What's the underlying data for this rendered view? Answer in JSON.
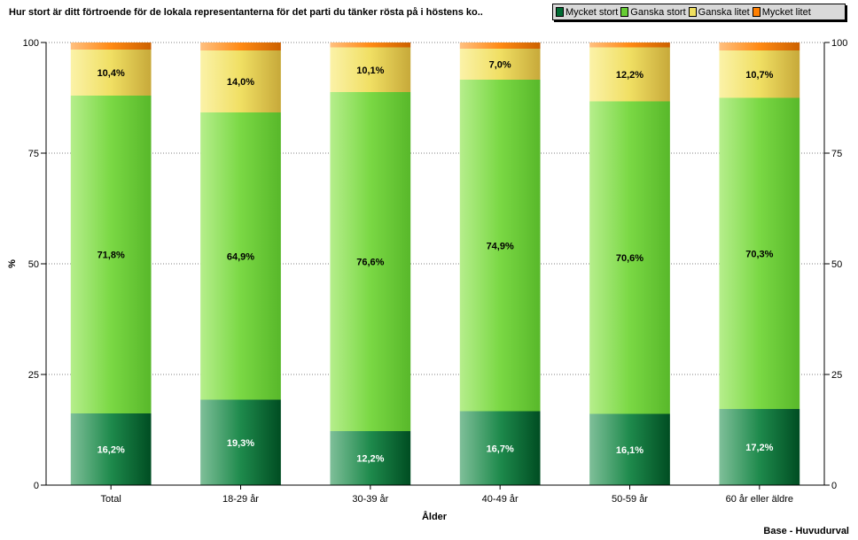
{
  "chart_data": {
    "type": "bar",
    "stacked": true,
    "title": "Hur stort är ditt förtroende för de lokala representanterna för det parti du tänker rösta på i höstens ko..",
    "xlabel": "Ålder",
    "ylabel": "%",
    "ylim": [
      0,
      100
    ],
    "yticks": [
      0,
      25,
      50,
      75,
      100
    ],
    "grid": true,
    "legend_position": "top-right",
    "categories": [
      "Total",
      "18-29 år",
      "30-39 år",
      "40-49 år",
      "50-59 år",
      "60 år eller äldre"
    ],
    "series": [
      {
        "name": "Mycket stort",
        "color": "#006b33",
        "values": [
          16.2,
          19.3,
          12.2,
          16.7,
          16.1,
          17.2
        ]
      },
      {
        "name": "Ganska stort",
        "color": "#66cc33",
        "values": [
          71.8,
          64.9,
          76.6,
          74.9,
          70.6,
          70.3
        ]
      },
      {
        "name": "Ganska litet",
        "color": "#f0e060",
        "values": [
          10.4,
          14.0,
          10.1,
          7.0,
          12.2,
          10.7
        ]
      },
      {
        "name": "Mycket litet",
        "color": "#ff7f00",
        "values": [
          1.6,
          1.8,
          1.1,
          1.4,
          1.1,
          1.8
        ]
      }
    ],
    "data_labels": [
      [
        "16,2%",
        "19,3%",
        "12,2%",
        "16,7%",
        "16,1%",
        "17,2%"
      ],
      [
        "71,8%",
        "64,9%",
        "76,6%",
        "74,9%",
        "70,6%",
        "70,3%"
      ],
      [
        "10,4%",
        "14,0%",
        "10,1%",
        "7,0%",
        "12,2%",
        "10,7%"
      ],
      [
        "",
        "",
        "",
        "",
        "",
        ""
      ]
    ]
  },
  "footer": {
    "base_note": "Base - Huvudurval"
  }
}
